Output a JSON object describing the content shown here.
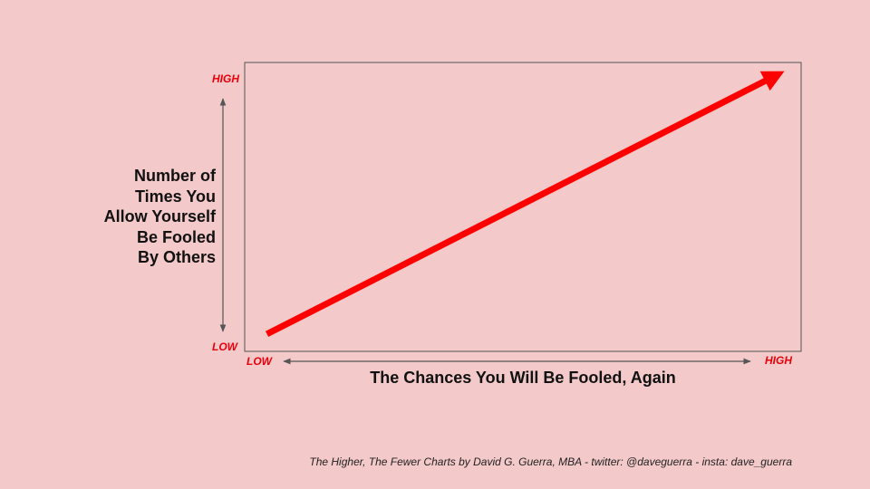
{
  "chart_data": {
    "type": "line",
    "ylabel_lines": [
      "Number of",
      "Times You",
      "Allow Yourself",
      "Be Fooled",
      "By Others"
    ],
    "xlabel": "The Chances You Will Be Fooled, Again",
    "y_ticks": {
      "high": "HIGH",
      "low": "LOW"
    },
    "x_ticks": {
      "low": "LOW",
      "high": "HIGH"
    },
    "xlim": [
      0,
      1
    ],
    "ylim": [
      0,
      1
    ],
    "series": [
      {
        "color": "#ff0000",
        "points": [
          [
            0.04,
            0.06
          ],
          [
            0.97,
            0.97
          ]
        ],
        "arrow_end": true
      }
    ],
    "grid": false,
    "legend": "none"
  },
  "footer": {
    "credit": "The Higher, The Fewer Charts by David G. Guerra, MBA  - twitter:  @daveguerra - insta: dave_guerra"
  },
  "colors": {
    "background": "#f4c9c9",
    "accent": "#e8000b",
    "axis_arrows": "#555555"
  }
}
